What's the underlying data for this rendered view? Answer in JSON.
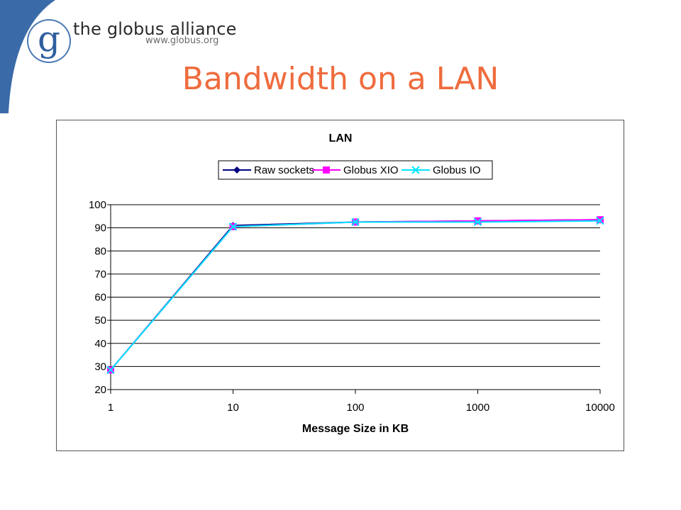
{
  "header": {
    "brand_letter": "g",
    "brand_name": "the globus alliance",
    "brand_url": "www.globus.org",
    "swoosh_color": "#3a6aa8"
  },
  "slide": {
    "title": "Bandwidth on a LAN"
  },
  "chart_data": {
    "type": "line",
    "title": "LAN",
    "xlabel": "Message Size in KB",
    "ylabel": "",
    "xscale": "log",
    "x": [
      1,
      10,
      100,
      1000,
      10000
    ],
    "x_tick_labels": [
      "1",
      "10",
      "100",
      "1000",
      "10000"
    ],
    "ylim": [
      20,
      100
    ],
    "y_ticks": [
      20,
      30,
      40,
      50,
      60,
      70,
      80,
      90,
      100
    ],
    "grid": "horizontal",
    "legend_position": "top",
    "series": [
      {
        "name": "Raw sockets",
        "color": "#000080",
        "marker": "diamond",
        "values": [
          28.5,
          91,
          92.5,
          93,
          93.5
        ]
      },
      {
        "name": "Globus XIO",
        "color": "#ff00ff",
        "marker": "square",
        "values": [
          28.5,
          90.5,
          92.5,
          93,
          93.5
        ]
      },
      {
        "name": "Globus IO",
        "color": "#00e5ff",
        "marker": "x",
        "values": [
          28.5,
          90.5,
          92.5,
          92.5,
          93
        ]
      }
    ]
  }
}
